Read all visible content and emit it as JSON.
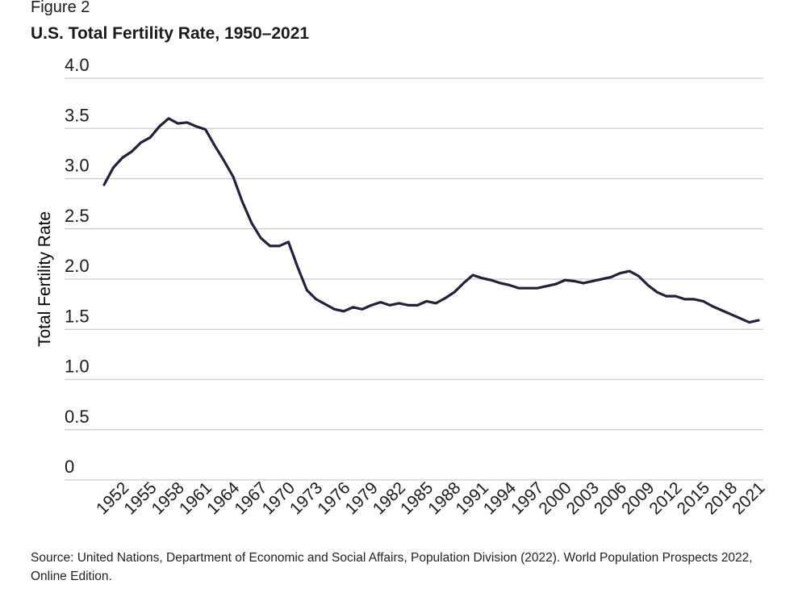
{
  "figure_label": "Figure 2",
  "source": "Source: United Nations, Department of Economic and Social Affairs, Population Division (2022). World Population Prospects 2022, Online Edition.",
  "colors": {
    "line": "#23213a",
    "grid": "#cccccc",
    "text": "#1a1a1a"
  },
  "chart_data": {
    "type": "line",
    "title": "U.S. Total Fertility Rate, 1950–2021",
    "xlabel": "",
    "ylabel": "Total Fertility Rate",
    "ylim": [
      0,
      4.0
    ],
    "yticks": [
      0,
      0.5,
      1.0,
      1.5,
      2.0,
      2.5,
      3.0,
      3.5,
      4.0
    ],
    "ytick_labels": [
      "0",
      "0.5",
      "1.0",
      "1.5",
      "2.0",
      "2.5",
      "3.0",
      "3.5",
      "4.0"
    ],
    "xlim": [
      1950,
      2021
    ],
    "xtick_labels": [
      "1952",
      "1955",
      "1958",
      "1961",
      "1964",
      "1967",
      "1970",
      "1973",
      "1976",
      "1979",
      "1982",
      "1985",
      "1988",
      "1991",
      "1994",
      "1997",
      "2000",
      "2003",
      "2006",
      "2009",
      "2012",
      "2015",
      "2018",
      "2021"
    ],
    "grid": true,
    "series": [
      {
        "x": [
          1950,
          1951,
          1952,
          1953,
          1954,
          1955,
          1956,
          1957,
          1958,
          1959,
          1960,
          1961,
          1962,
          1963,
          1964,
          1965,
          1966,
          1967,
          1968,
          1969,
          1970,
          1971,
          1972,
          1973,
          1974,
          1975,
          1976,
          1977,
          1978,
          1979,
          1980,
          1981,
          1982,
          1983,
          1984,
          1985,
          1986,
          1987,
          1988,
          1989,
          1990,
          1991,
          1992,
          1993,
          1994,
          1995,
          1996,
          1997,
          1998,
          1999,
          2000,
          2001,
          2002,
          2003,
          2004,
          2005,
          2006,
          2007,
          2008,
          2009,
          2010,
          2011,
          2012,
          2013,
          2014,
          2015,
          2016,
          2017,
          2018,
          2019,
          2020,
          2021
        ],
        "y": [
          2.94,
          3.11,
          3.21,
          3.27,
          3.36,
          3.41,
          3.52,
          3.6,
          3.55,
          3.56,
          3.52,
          3.49,
          3.33,
          3.18,
          3.02,
          2.77,
          2.56,
          2.41,
          2.33,
          2.33,
          2.37,
          2.12,
          1.89,
          1.8,
          1.75,
          1.7,
          1.68,
          1.72,
          1.7,
          1.74,
          1.77,
          1.74,
          1.76,
          1.74,
          1.74,
          1.78,
          1.76,
          1.81,
          1.87,
          1.96,
          2.04,
          2.01,
          1.99,
          1.96,
          1.94,
          1.91,
          1.91,
          1.91,
          1.93,
          1.95,
          1.99,
          1.98,
          1.96,
          1.98,
          2.0,
          2.02,
          2.06,
          2.08,
          2.03,
          1.94,
          1.87,
          1.83,
          1.83,
          1.8,
          1.8,
          1.78,
          1.73,
          1.69,
          1.65,
          1.61,
          1.57,
          1.59
        ]
      }
    ]
  }
}
